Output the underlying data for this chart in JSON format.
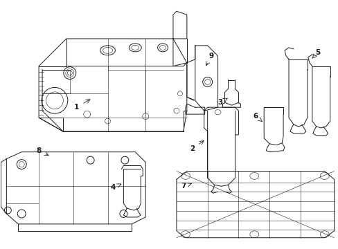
{
  "bg_color": "#ffffff",
  "line_color": "#1a1a1a",
  "lw": 0.7,
  "tlw": 0.4,
  "label_fontsize": 7.5,
  "figsize": [
    4.89,
    3.6
  ],
  "dpi": 100
}
